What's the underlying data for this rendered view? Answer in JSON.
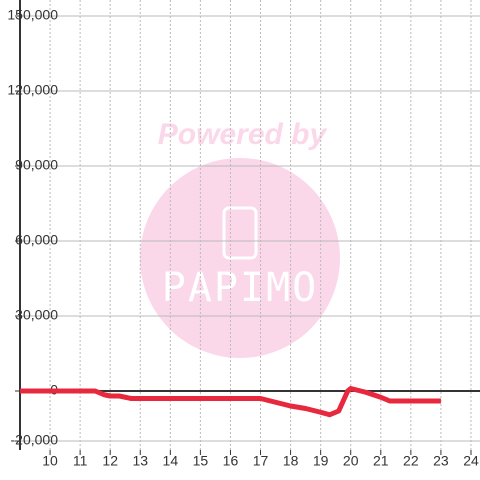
{
  "chart_data": {
    "type": "line",
    "x": [
      9,
      11.5,
      11.8,
      12,
      12.3,
      12.7,
      13,
      17,
      17.5,
      18,
      18.5,
      19,
      19.3,
      19.6,
      19.9,
      20,
      20.5,
      21,
      21.3,
      22,
      23
    ],
    "series": [
      {
        "color": "#e8283c",
        "values": [
          0,
          0,
          -1500,
          -2000,
          -2000,
          -3000,
          -3000,
          -3000,
          -4500,
          -6000,
          -7000,
          -8500,
          -9500,
          -8000,
          0,
          1000,
          -500,
          -2500,
          -4000,
          -4000,
          -4000
        ]
      }
    ],
    "xlim": [
      9,
      24.3
    ],
    "xticks": [
      10,
      11,
      12,
      13,
      14,
      15,
      16,
      17,
      18,
      19,
      20,
      21,
      22,
      23,
      24
    ],
    "ylim": [
      -23600,
      156400
    ],
    "yticks": [
      {
        "value": -20000,
        "label": "-20,000"
      },
      0,
      {
        "value": 30000,
        "label": "30,000"
      },
      {
        "value": 60000,
        "label": "60,000"
      },
      {
        "value": 90000,
        "label": "90,000"
      },
      {
        "value": 120000,
        "label": "120,000"
      },
      {
        "value": 150000,
        "label": "150,000"
      }
    ],
    "grid": true,
    "watermark": {
      "text": "Powered by",
      "logo": "PAPIMO"
    }
  }
}
